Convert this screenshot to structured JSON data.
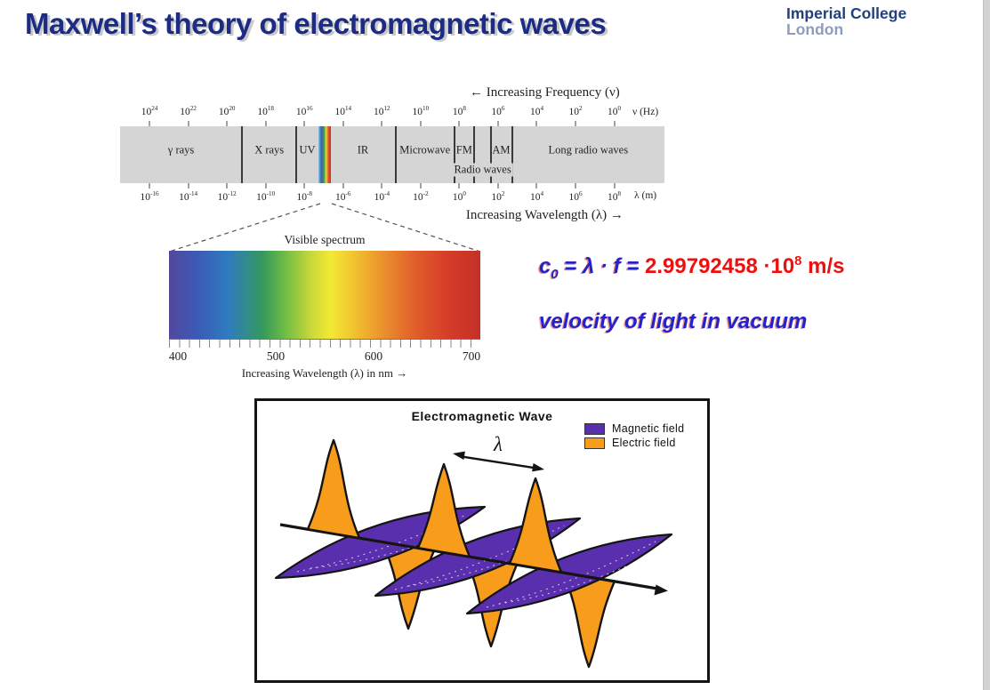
{
  "slide": {
    "title": "Maxwell’s theory of electromagnetic waves",
    "logo_line1": "Imperial College",
    "logo_line2": "London"
  },
  "spectrum": {
    "freq_axis_label": "← Increasing Frequency (ν)",
    "mantissa": "10",
    "freq_exponents": [
      "24",
      "22",
      "20",
      "18",
      "16",
      "14",
      "12",
      "10",
      "8",
      "6",
      "4",
      "2",
      "0"
    ],
    "freq_unit": "ν (Hz)",
    "wavelength_exponents": [
      "-16",
      "-14",
      "-12",
      "-10",
      "-8",
      "-6",
      "-4",
      "-2",
      "0",
      "2",
      "4",
      "6",
      "8"
    ],
    "wavelength_unit": "λ (m)",
    "wavelength_axis_label": "Increasing Wavelength (λ) →",
    "regions": [
      "γ rays",
      "X rays",
      "UV",
      "IR",
      "Microwave",
      "FM",
      "AM",
      "Long radio waves"
    ],
    "radio_waves_label": "Radio waves"
  },
  "visible_spectrum": {
    "title": "Visible spectrum",
    "tick_values": [
      "400",
      "500",
      "600",
      "700"
    ],
    "caption": "Increasing Wavelength (λ) in nm →"
  },
  "formula": {
    "c": "c",
    "c_subscript": "0",
    "middle": " = λ · f = ",
    "value": "2.99792458 ·10",
    "value_exponent": "8",
    "unit": " m/s",
    "caption": "velocity of light in vacuum"
  },
  "wave": {
    "title": "Electromagnetic Wave",
    "lambda_symbol": "λ",
    "legend": [
      {
        "label": "Magnetic field",
        "color": "#5a2fae"
      },
      {
        "label": "Electric field",
        "color": "#f79c1b"
      }
    ]
  },
  "colors": {
    "title_navy": "#1c2c85",
    "formula_blue": "#2323cd",
    "formula_red": "#ee1010",
    "magnetic_purple": "#5a2fae",
    "electric_orange": "#f79c1b",
    "band_gray": "#d5d5d5"
  }
}
